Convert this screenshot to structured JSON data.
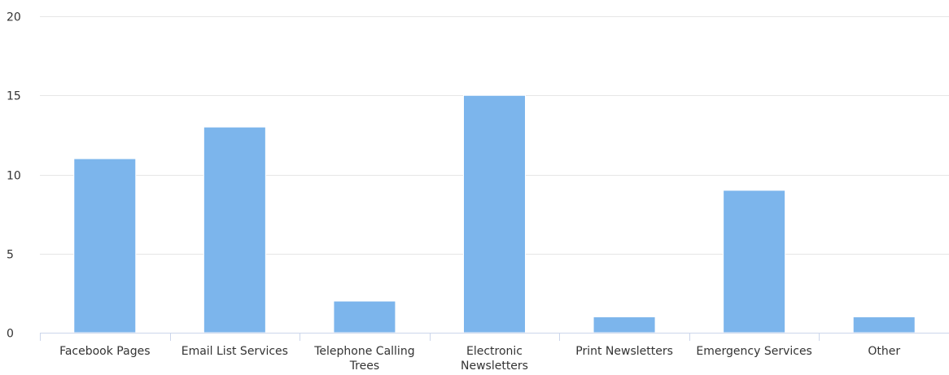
{
  "chart_data": {
    "type": "bar",
    "categories": [
      "Facebook Pages",
      "Email List Services",
      "Telephone Calling Trees",
      "Electronic Newsletters",
      "Print Newsletters",
      "Emergency Services",
      "Other"
    ],
    "category_lines": [
      [
        "Facebook Pages"
      ],
      [
        "Email List Services"
      ],
      [
        "Telephone Calling",
        "Trees"
      ],
      [
        "Electronic",
        "Newsletters"
      ],
      [
        "Print Newsletters"
      ],
      [
        "Emergency Services"
      ],
      [
        "Other"
      ]
    ],
    "values": [
      11,
      13,
      2,
      15,
      1,
      9,
      1
    ],
    "ylim": [
      0,
      20
    ],
    "yticks": [
      0,
      5,
      10,
      15,
      20
    ],
    "grid": true,
    "legend": "none",
    "bar_color": "#7cb5ec",
    "grid_color": "#e6e6e6",
    "axis_color": "#ccd6eb"
  }
}
